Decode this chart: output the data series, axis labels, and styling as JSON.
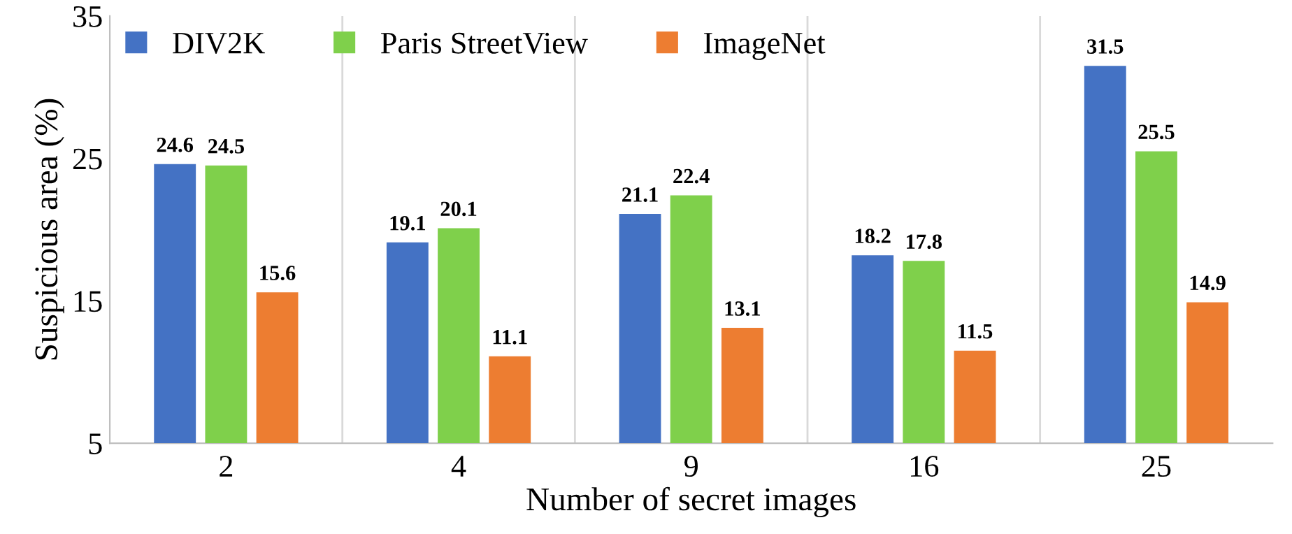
{
  "chart_data": {
    "type": "bar",
    "xlabel": "Number of secret images",
    "ylabel": "Suspicious area (%)",
    "categories": [
      "2",
      "4",
      "9",
      "16",
      "25"
    ],
    "series": [
      {
        "name": "DIV2K",
        "color": "#4472c4",
        "values": [
          24.6,
          19.1,
          21.1,
          18.2,
          31.5
        ]
      },
      {
        "name": "Paris StreetView",
        "color": "#7fd04b",
        "values": [
          24.5,
          20.1,
          22.4,
          17.8,
          25.5
        ]
      },
      {
        "name": "ImageNet",
        "color": "#ed7d31",
        "values": [
          15.6,
          11.1,
          13.1,
          11.5,
          14.9
        ]
      }
    ],
    "ylim": [
      5,
      35
    ],
    "yticks": [
      5,
      15,
      25,
      35
    ],
    "grid": "x",
    "legend": "top left",
    "data_labels": true
  }
}
